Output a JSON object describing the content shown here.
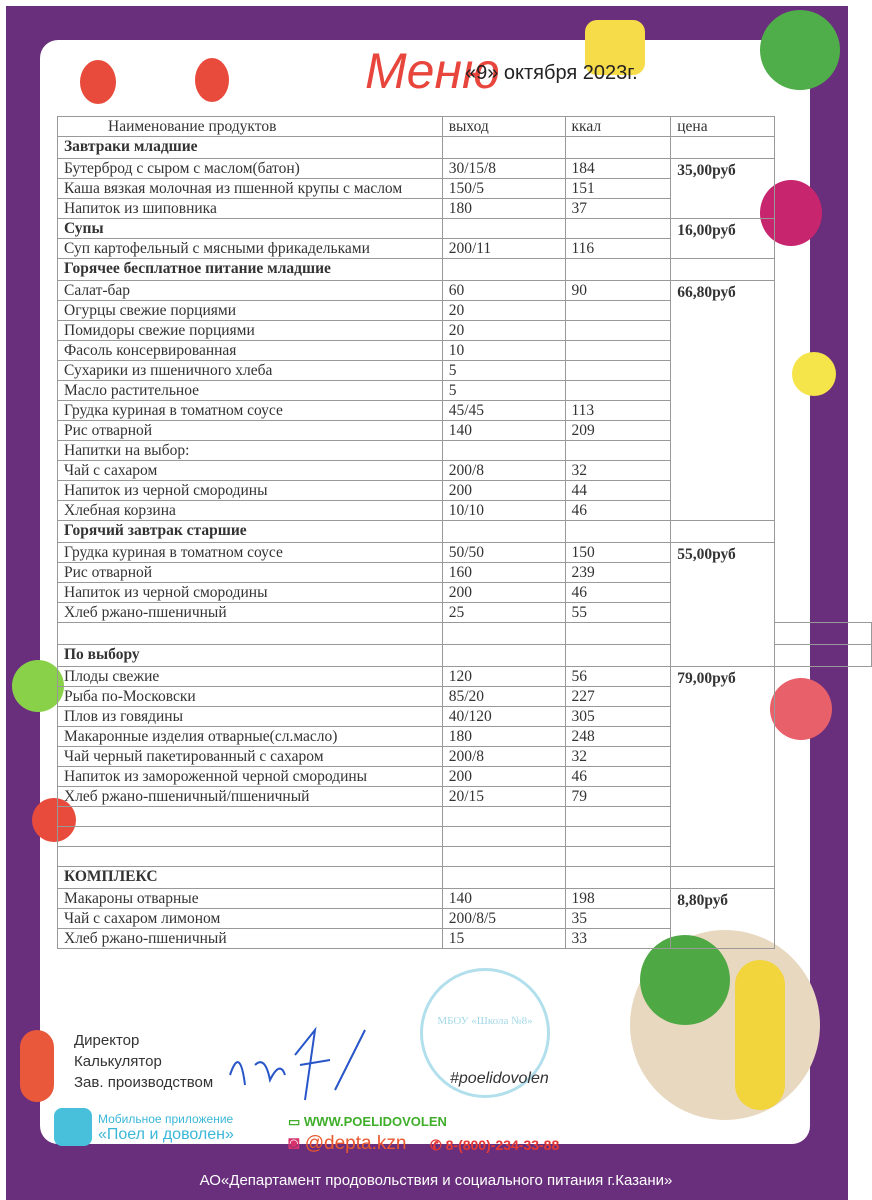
{
  "header": {
    "title": "Меню",
    "date": "«9» октября   2023г."
  },
  "table": {
    "columns": [
      "Наименование продуктов",
      "выход",
      "ккал",
      "цена"
    ],
    "rows": [
      {
        "name": "Завтраки младшие",
        "out": "",
        "kcal": "",
        "bold": true,
        "price": "",
        "span": 1
      },
      {
        "name": "Бутерброд с сыром с маслом(батон)",
        "out": "30/15/8",
        "kcal": "184",
        "price": "35,00руб",
        "span": 3
      },
      {
        "name": "Каша вязкая молочная из пшенной крупы с маслом",
        "out": "150/5",
        "kcal": "151"
      },
      {
        "name": "Напиток из шиповника",
        "out": "180",
        "kcal": "37"
      },
      {
        "name": "Супы",
        "out": "",
        "kcal": "",
        "bold": true,
        "price": "16,00руб",
        "span": 2
      },
      {
        "name": "Суп картофельный с мясными фрикадельками",
        "out": "200/11",
        "kcal": "116"
      },
      {
        "name": "Горячее бесплатное питание младшие",
        "out": "",
        "kcal": "",
        "bold": true,
        "price": "",
        "span": 1
      },
      {
        "name": "Салат-бар",
        "out": "60",
        "kcal": "90",
        "price": "66,80руб",
        "span": 12
      },
      {
        "name": "Огурцы свежие порциями",
        "out": "20",
        "kcal": ""
      },
      {
        "name": "Помидоры свежие порциями",
        "out": "20",
        "kcal": ""
      },
      {
        "name": "Фасоль консервированная",
        "out": "10",
        "kcal": ""
      },
      {
        "name": "Сухарики из пшеничного хлеба",
        "out": "5",
        "kcal": ""
      },
      {
        "name": "Масло растительное",
        "out": "5",
        "kcal": ""
      },
      {
        "name": "Грудка куриная в томатном соусе",
        "out": "45/45",
        "kcal": "113"
      },
      {
        "name": "Рис отварной",
        "out": "140",
        "kcal": "209"
      },
      {
        "name": "Напитки на выбор:",
        "out": "",
        "kcal": ""
      },
      {
        "name": "Чай с сахаром",
        "out": "200/8",
        "kcal": "32"
      },
      {
        "name": "Напиток из черной смородины",
        "out": "200",
        "kcal": "44"
      },
      {
        "name": "Хлебная корзина",
        "out": "10/10",
        "kcal": "46"
      },
      {
        "name": "Горячий завтрак старшие",
        "out": "",
        "kcal": "",
        "bold": true,
        "price": "",
        "span": 1
      },
      {
        "name": "Грудка куриная в томатном соусе",
        "out": "50/50",
        "kcal": "150",
        "price": "55,00руб",
        "span": 6
      },
      {
        "name": "Рис отварной",
        "out": "160",
        "kcal": "239"
      },
      {
        "name": "Напиток из черной смородины",
        "out": "200",
        "kcal": "46"
      },
      {
        "name": "Хлеб ржано-пшеничный",
        "out": "25",
        "kcal": "55"
      },
      {
        "name": "",
        "out": "",
        "kcal": ""
      },
      {
        "name": "По выбору",
        "out": "",
        "kcal": "",
        "bold": true
      },
      {
        "name": "Плоды свежие",
        "out": "120",
        "kcal": "56",
        "price": "79,00руб",
        "span": 10
      },
      {
        "name": "Рыба по-Московски",
        "out": "85/20",
        "kcal": "227"
      },
      {
        "name": "Плов из говядины",
        "out": "40/120",
        "kcal": "305"
      },
      {
        "name": "Макаронные изделия отварные(сл.масло)",
        "out": "180",
        "kcal": "248"
      },
      {
        "name": "Чай черный пакетированный с сахаром",
        "out": "200/8",
        "kcal": "32"
      },
      {
        "name": "Напиток из замороженной черной смородины",
        "out": "200",
        "kcal": "46"
      },
      {
        "name": "Хлеб ржано-пшеничный/пшеничный",
        "out": "20/15",
        "kcal": "79"
      },
      {
        "name": "",
        "out": "",
        "kcal": ""
      },
      {
        "name": "",
        "out": "",
        "kcal": ""
      },
      {
        "name": "",
        "out": "",
        "kcal": ""
      },
      {
        "name": "КОМПЛЕКС",
        "out": "",
        "kcal": "",
        "bold": true,
        "price": "",
        "span": 1
      },
      {
        "name": "Макароны отварные",
        "out": "140",
        "kcal": "198",
        "price": "8,80руб",
        "span": 3
      },
      {
        "name": "Чай с сахаром лимоном",
        "out": "200/8/5",
        "kcal": "35"
      },
      {
        "name": "Хлеб ржано-пшеничный",
        "out": "15",
        "kcal": "33"
      }
    ]
  },
  "signatures": [
    "Директор",
    "Калькулятор",
    "Зав. производством"
  ],
  "stamp": "МБОУ «Школа №8»",
  "hashtag": "#poelidovolen",
  "contacts": {
    "app_label": "Мобильное приложение",
    "app_name": "«Поел и доволен»",
    "website": "WWW.POELIDOVOLEN",
    "instagram": "@depta.kzn",
    "phone": "8-(800)-234-33-88"
  },
  "footer": "АО«Департамент продовольствия и социального питания г.Казани»",
  "colors": {
    "frame": "#6a2f7c",
    "title": "#e8453c"
  }
}
